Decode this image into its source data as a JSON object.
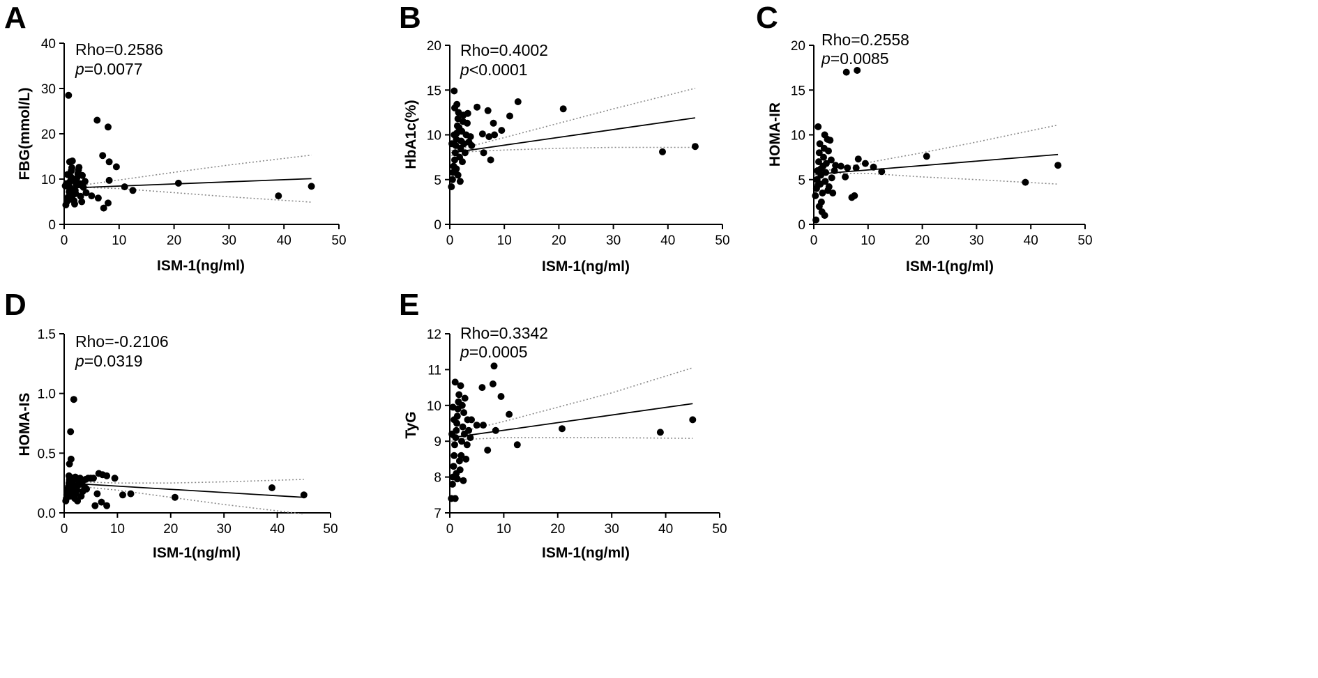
{
  "chart_data": [
    {
      "type": "scatter",
      "panel": "A",
      "xlabel": "ISM-1(ng/ml)",
      "ylabel": "FBG(mmol/L)",
      "xlim": [
        0,
        50
      ],
      "ylim": [
        0,
        40
      ],
      "xticks": [
        0,
        10,
        20,
        30,
        40,
        50
      ],
      "yticks": [
        0,
        10,
        20,
        30,
        40
      ],
      "stat": {
        "rho": "Rho=0.2586",
        "p_label": "p",
        "p_value": "=0.0077"
      },
      "fit": [
        [
          0.3,
          8.0
        ],
        [
          45,
          10.1
        ]
      ],
      "ci_upper": [
        [
          0.3,
          8.3
        ],
        [
          3,
          8.6
        ],
        [
          10,
          9.8
        ],
        [
          20,
          11.5
        ],
        [
          30,
          13.1
        ],
        [
          45,
          15.3
        ]
      ],
      "ci_lower": [
        [
          0.3,
          7.7
        ],
        [
          3,
          8.2
        ],
        [
          10,
          7.9
        ],
        [
          20,
          7.0
        ],
        [
          30,
          6.1
        ],
        [
          45,
          4.9
        ]
      ],
      "points": [
        [
          0.8,
          28.5
        ],
        [
          6,
          23
        ],
        [
          8,
          21.5
        ],
        [
          7,
          15.2
        ],
        [
          8.2,
          13.8
        ],
        [
          9.5,
          12.7
        ],
        [
          11,
          8.3
        ],
        [
          12.5,
          7.5
        ],
        [
          20.8,
          9.1
        ],
        [
          39,
          6.3
        ],
        [
          45,
          8.4
        ],
        [
          5,
          6.3
        ],
        [
          6.2,
          5.8
        ],
        [
          7.2,
          3.6
        ],
        [
          8,
          4.7
        ],
        [
          8.2,
          9.7
        ],
        [
          0.3,
          4.3
        ],
        [
          0.5,
          5.0
        ],
        [
          0.7,
          6.0
        ],
        [
          0.9,
          7.2
        ],
        [
          1.0,
          8.2
        ],
        [
          1.1,
          9.5
        ],
        [
          1.2,
          10.5
        ],
        [
          1.3,
          11.8
        ],
        [
          1.4,
          12.5
        ],
        [
          1.0,
          13.8
        ],
        [
          1.5,
          14.0
        ],
        [
          0.6,
          11.0
        ],
        [
          0.4,
          9.0
        ],
        [
          1.6,
          6.5
        ],
        [
          1.8,
          5.2
        ],
        [
          2.0,
          7.5
        ],
        [
          2.2,
          8.8
        ],
        [
          2.3,
          10.2
        ],
        [
          2.5,
          11.2
        ],
        [
          2.6,
          12.0
        ],
        [
          2.8,
          9.0
        ],
        [
          3.0,
          6.2
        ],
        [
          3.2,
          5.0
        ],
        [
          3.5,
          8.2
        ],
        [
          3.8,
          9.5
        ],
        [
          4.0,
          7.0
        ],
        [
          1.9,
          4.5
        ],
        [
          0.2,
          8.5
        ],
        [
          2.7,
          12.6
        ],
        [
          3.3,
          10.8
        ],
        [
          1.7,
          9.9
        ],
        [
          2.1,
          6.8
        ],
        [
          0.9,
          5.5
        ],
        [
          1.3,
          7.8
        ]
      ]
    },
    {
      "type": "scatter",
      "panel": "B",
      "xlabel": "ISM-1(ng/ml)",
      "ylabel": "HbA1c(%)",
      "xlim": [
        0,
        50
      ],
      "ylim": [
        0,
        20
      ],
      "xticks": [
        0,
        10,
        20,
        30,
        40,
        50
      ],
      "yticks": [
        0,
        5,
        10,
        15,
        20
      ],
      "stat": {
        "rho": "Rho=0.4002",
        "p_label": "p",
        "p_value": "<0.0001"
      },
      "fit": [
        [
          0.3,
          8.0
        ],
        [
          45,
          11.9
        ]
      ],
      "ci_upper": [
        [
          0.3,
          8.2
        ],
        [
          3,
          8.6
        ],
        [
          10,
          9.7
        ],
        [
          20,
          11.3
        ],
        [
          30,
          12.9
        ],
        [
          45,
          15.2
        ]
      ],
      "ci_lower": [
        [
          0.3,
          7.7
        ],
        [
          3,
          8.1
        ],
        [
          10,
          8.3
        ],
        [
          20,
          8.5
        ],
        [
          30,
          8.6
        ],
        [
          45,
          8.6
        ]
      ],
      "points": [
        [
          0.8,
          14.9
        ],
        [
          1.3,
          13.4
        ],
        [
          5,
          13.1
        ],
        [
          7,
          12.7
        ],
        [
          8,
          11.3
        ],
        [
          9.5,
          10.5
        ],
        [
          11,
          12.1
        ],
        [
          12.5,
          13.7
        ],
        [
          20.8,
          12.9
        ],
        [
          39,
          8.1
        ],
        [
          45,
          8.7
        ],
        [
          6,
          10.1
        ],
        [
          7.2,
          9.8
        ],
        [
          8.2,
          10.0
        ],
        [
          6.2,
          8.0
        ],
        [
          7.5,
          7.2
        ],
        [
          0.3,
          4.2
        ],
        [
          0.5,
          5.0
        ],
        [
          0.6,
          5.8
        ],
        [
          0.7,
          6.5
        ],
        [
          0.9,
          7.2
        ],
        [
          1.0,
          8.0
        ],
        [
          1.1,
          8.8
        ],
        [
          1.2,
          9.5
        ],
        [
          1.3,
          10.2
        ],
        [
          1.4,
          11.0
        ],
        [
          1.5,
          11.8
        ],
        [
          1.6,
          12.5
        ],
        [
          0.4,
          9.0
        ],
        [
          0.8,
          10.0
        ],
        [
          1.8,
          7.5
        ],
        [
          2.0,
          8.5
        ],
        [
          2.1,
          9.3
        ],
        [
          2.2,
          10.4
        ],
        [
          2.4,
          11.5
        ],
        [
          2.6,
          9.0
        ],
        [
          2.8,
          8.0
        ],
        [
          3.0,
          10.0
        ],
        [
          3.2,
          11.3
        ],
        [
          3.5,
          9.2
        ],
        [
          4.0,
          8.8
        ],
        [
          1.9,
          4.8
        ],
        [
          1.2,
          6.2
        ],
        [
          2.5,
          12.2
        ],
        [
          3.3,
          12.4
        ],
        [
          1.7,
          10.8
        ],
        [
          0.9,
          13.0
        ],
        [
          2.3,
          7.0
        ],
        [
          1.5,
          5.5
        ],
        [
          3.8,
          9.8
        ]
      ]
    },
    {
      "type": "scatter",
      "panel": "C",
      "xlabel": "ISM-1(ng/ml)",
      "ylabel": "HOMA-IR",
      "xlim": [
        0,
        50
      ],
      "ylim": [
        0,
        20
      ],
      "xticks": [
        0,
        10,
        20,
        30,
        40,
        50
      ],
      "yticks": [
        0,
        5,
        10,
        15,
        20
      ],
      "stat": {
        "rho": "Rho=0.2558",
        "p_label": "p",
        "p_value": "=0.0085"
      },
      "fit": [
        [
          0.3,
          5.6
        ],
        [
          45,
          7.8
        ]
      ],
      "ci_upper": [
        [
          0.3,
          5.8
        ],
        [
          3,
          6.1
        ],
        [
          10,
          6.9
        ],
        [
          20,
          8.0
        ],
        [
          30,
          9.2
        ],
        [
          45,
          11.1
        ]
      ],
      "ci_lower": [
        [
          0.3,
          5.4
        ],
        [
          3,
          5.7
        ],
        [
          10,
          5.7
        ],
        [
          20,
          5.3
        ],
        [
          30,
          5.0
        ],
        [
          45,
          4.5
        ]
      ],
      "points": [
        [
          6,
          17.0
        ],
        [
          8,
          17.2
        ],
        [
          0.8,
          10.9
        ],
        [
          2.0,
          10.0
        ],
        [
          2.5,
          9.5
        ],
        [
          3.0,
          9.4
        ],
        [
          8.2,
          7.3
        ],
        [
          9.5,
          6.8
        ],
        [
          11,
          6.4
        ],
        [
          12.5,
          5.9
        ],
        [
          20.8,
          7.6
        ],
        [
          39,
          4.7
        ],
        [
          45,
          6.6
        ],
        [
          7,
          3.0
        ],
        [
          7.5,
          3.2
        ],
        [
          6.2,
          6.3
        ],
        [
          7.8,
          6.3
        ],
        [
          5,
          6.5
        ],
        [
          5.8,
          5.3
        ],
        [
          4.0,
          6.6
        ],
        [
          0.3,
          3.2
        ],
        [
          0.5,
          4.0
        ],
        [
          0.6,
          5.0
        ],
        [
          0.7,
          6.0
        ],
        [
          0.9,
          7.0
        ],
        [
          1.0,
          8.0
        ],
        [
          1.1,
          9.0
        ],
        [
          1.2,
          4.5
        ],
        [
          1.3,
          5.5
        ],
        [
          1.4,
          2.5
        ],
        [
          1.5,
          1.4
        ],
        [
          1.6,
          3.5
        ],
        [
          1.7,
          6.5
        ],
        [
          1.8,
          7.5
        ],
        [
          1.9,
          8.5
        ],
        [
          2.1,
          4.8
        ],
        [
          2.2,
          5.8
        ],
        [
          2.3,
          6.8
        ],
        [
          2.6,
          3.8
        ],
        [
          2.8,
          4.2
        ],
        [
          3.2,
          7.2
        ],
        [
          3.5,
          3.5
        ],
        [
          0.4,
          0.5
        ],
        [
          2.0,
          1.0
        ],
        [
          1.0,
          2.0
        ],
        [
          2.7,
          8.2
        ],
        [
          3.3,
          5.2
        ],
        [
          0.8,
          4.4
        ],
        [
          1.3,
          6.2
        ],
        [
          3.8,
          6.0
        ]
      ]
    },
    {
      "type": "scatter",
      "panel": "D",
      "xlabel": "ISM-1(ng/ml)",
      "ylabel": "HOMA-IS",
      "xlim": [
        0,
        50
      ],
      "ylim": [
        0,
        1.5
      ],
      "xticks": [
        0,
        10,
        20,
        30,
        40,
        50
      ],
      "yticks": [
        0,
        0.5,
        1.0,
        1.5
      ],
      "ytick_labels": [
        "0.0",
        "0.5",
        "1.0",
        "1.5"
      ],
      "stat": {
        "rho": "Rho=-0.2106",
        "p_label": "p",
        "p_value": "=0.0319"
      },
      "fit": [
        [
          0.3,
          0.25
        ],
        [
          45,
          0.13
        ]
      ],
      "ci_upper": [
        [
          0.3,
          0.27
        ],
        [
          3,
          0.26
        ],
        [
          10,
          0.25
        ],
        [
          20,
          0.25
        ],
        [
          30,
          0.26
        ],
        [
          45,
          0.28
        ]
      ],
      "ci_lower": [
        [
          0.3,
          0.23
        ],
        [
          3,
          0.22
        ],
        [
          10,
          0.19
        ],
        [
          20,
          0.13
        ],
        [
          30,
          0.07
        ],
        [
          45,
          -0.01
        ]
      ],
      "points": [
        [
          1.8,
          0.95
        ],
        [
          1.2,
          0.68
        ],
        [
          1.3,
          0.45
        ],
        [
          1.0,
          0.41
        ],
        [
          6.5,
          0.33
        ],
        [
          7.2,
          0.32
        ],
        [
          8.0,
          0.31
        ],
        [
          9.5,
          0.29
        ],
        [
          6.2,
          0.16
        ],
        [
          7.0,
          0.09
        ],
        [
          8.0,
          0.06
        ],
        [
          5.8,
          0.06
        ],
        [
          11,
          0.15
        ],
        [
          12.5,
          0.16
        ],
        [
          20.8,
          0.13
        ],
        [
          39,
          0.21
        ],
        [
          45,
          0.15
        ],
        [
          0.3,
          0.1
        ],
        [
          0.4,
          0.12
        ],
        [
          0.5,
          0.15
        ],
        [
          0.6,
          0.18
        ],
        [
          0.7,
          0.2
        ],
        [
          0.8,
          0.22
        ],
        [
          0.9,
          0.25
        ],
        [
          1.0,
          0.28
        ],
        [
          1.1,
          0.3
        ],
        [
          1.4,
          0.17
        ],
        [
          1.5,
          0.21
        ],
        [
          1.6,
          0.24
        ],
        [
          1.7,
          0.27
        ],
        [
          1.9,
          0.29
        ],
        [
          2.0,
          0.12
        ],
        [
          2.2,
          0.16
        ],
        [
          2.4,
          0.19
        ],
        [
          2.6,
          0.23
        ],
        [
          2.8,
          0.26
        ],
        [
          3.0,
          0.29
        ],
        [
          3.2,
          0.14
        ],
        [
          3.5,
          0.18
        ],
        [
          3.8,
          0.22
        ],
        [
          4.0,
          0.28
        ],
        [
          4.5,
          0.29
        ],
        [
          5.0,
          0.29
        ],
        [
          5.5,
          0.29
        ],
        [
          2.1,
          0.3
        ],
        [
          1.2,
          0.14
        ],
        [
          0.9,
          0.31
        ],
        [
          2.5,
          0.1
        ],
        [
          3.3,
          0.25
        ],
        [
          4.2,
          0.2
        ]
      ]
    },
    {
      "type": "scatter",
      "panel": "E",
      "xlabel": "ISM-1(ng/ml)",
      "ylabel": "TyG",
      "xlim": [
        0,
        50
      ],
      "ylim": [
        7,
        12
      ],
      "xticks": [
        0,
        10,
        20,
        30,
        40,
        50
      ],
      "yticks": [
        7,
        8,
        9,
        10,
        11,
        12
      ],
      "stat": {
        "rho": "Rho=0.3342",
        "p_label": "p",
        "p_value": "=0.0005"
      },
      "fit": [
        [
          0.3,
          9.1
        ],
        [
          45,
          10.05
        ]
      ],
      "ci_upper": [
        [
          0.3,
          9.2
        ],
        [
          3,
          9.3
        ],
        [
          10,
          9.55
        ],
        [
          20,
          9.95
        ],
        [
          30,
          10.35
        ],
        [
          45,
          11.05
        ]
      ],
      "ci_lower": [
        [
          0.3,
          9.0
        ],
        [
          3,
          9.05
        ],
        [
          10,
          9.1
        ],
        [
          20,
          9.1
        ],
        [
          30,
          9.1
        ],
        [
          45,
          9.08
        ]
      ],
      "points": [
        [
          8.2,
          11.1
        ],
        [
          8.0,
          10.6
        ],
        [
          6.0,
          10.5
        ],
        [
          9.5,
          10.25
        ],
        [
          1.0,
          10.65
        ],
        [
          2.0,
          10.55
        ],
        [
          11,
          9.75
        ],
        [
          12.5,
          8.9
        ],
        [
          20.8,
          9.35
        ],
        [
          39,
          9.25
        ],
        [
          45,
          9.6
        ],
        [
          7.0,
          8.75
        ],
        [
          8.5,
          9.3
        ],
        [
          5.0,
          9.45
        ],
        [
          6.2,
          9.45
        ],
        [
          4.0,
          9.6
        ],
        [
          0.3,
          7.4
        ],
        [
          1.0,
          7.4
        ],
        [
          0.5,
          7.8
        ],
        [
          0.6,
          8.0
        ],
        [
          0.7,
          8.3
        ],
        [
          0.8,
          8.6
        ],
        [
          0.9,
          8.9
        ],
        [
          1.1,
          9.1
        ],
        [
          1.2,
          9.3
        ],
        [
          1.3,
          9.5
        ],
        [
          1.4,
          9.7
        ],
        [
          1.5,
          9.9
        ],
        [
          1.6,
          10.1
        ],
        [
          1.7,
          10.3
        ],
        [
          0.4,
          9.2
        ],
        [
          0.8,
          9.6
        ],
        [
          1.9,
          8.2
        ],
        [
          2.1,
          8.6
        ],
        [
          2.2,
          9.0
        ],
        [
          2.4,
          9.4
        ],
        [
          2.6,
          9.8
        ],
        [
          2.8,
          10.2
        ],
        [
          3.0,
          8.5
        ],
        [
          3.2,
          8.9
        ],
        [
          3.5,
          9.3
        ],
        [
          3.8,
          9.1
        ],
        [
          2.5,
          7.9
        ],
        [
          1.8,
          8.45
        ],
        [
          0.6,
          9.95
        ],
        [
          2.3,
          10.0
        ],
        [
          3.3,
          9.6
        ],
        [
          1.2,
          8.1
        ],
        [
          2.7,
          9.2
        ],
        [
          1.4,
          7.95
        ]
      ]
    }
  ]
}
